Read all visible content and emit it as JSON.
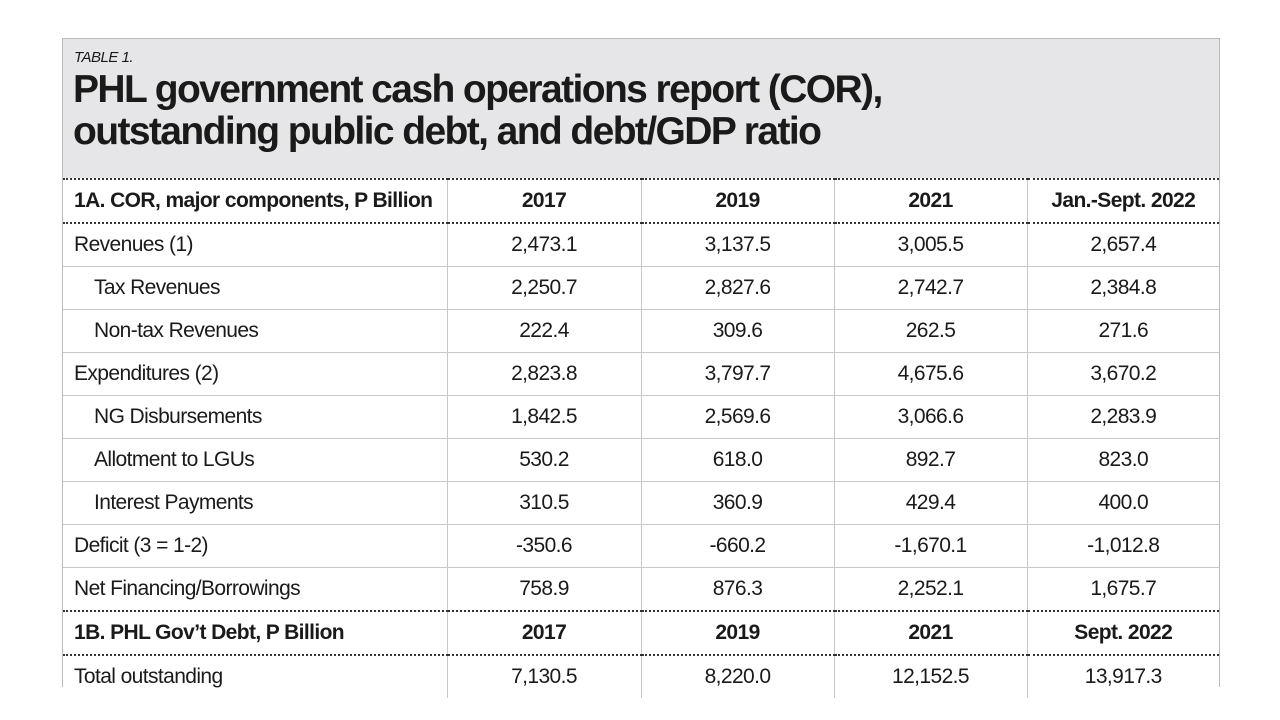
{
  "label": "TABLE 1.",
  "title_line1": "PHL government cash operations report (COR),",
  "title_line2": "outstanding public debt, and debt/GDP ratio",
  "section_a": {
    "header": [
      "1A. COR, major components, P Billion",
      "2017",
      "2019",
      "2021",
      "Jan.-Sept. 2022"
    ],
    "rows": [
      {
        "label": "Revenues (1)",
        "values": [
          "2,473.1",
          "3,137.5",
          "3,005.5",
          "2,657.4"
        ]
      },
      {
        "label": "Tax Revenues",
        "values": [
          "2,250.7",
          "2,827.6",
          "2,742.7",
          "2,384.8"
        ]
      },
      {
        "label": "Non-tax Revenues",
        "values": [
          "222.4",
          "309.6",
          "262.5",
          "271.6"
        ]
      },
      {
        "label": "Expenditures (2)",
        "values": [
          "2,823.8",
          "3,797.7",
          "4,675.6",
          "3,670.2"
        ]
      },
      {
        "label": "NG Disbursements",
        "values": [
          "1,842.5",
          "2,569.6",
          "3,066.6",
          "2,283.9"
        ]
      },
      {
        "label": "Allotment to LGUs",
        "values": [
          "530.2",
          "618.0",
          "892.7",
          "823.0"
        ]
      },
      {
        "label": "Interest Payments",
        "values": [
          "310.5",
          "360.9",
          "429.4",
          "400.0"
        ]
      },
      {
        "label": "Deficit (3 = 1-2)",
        "values": [
          "-350.6",
          "-660.2",
          "-1,670.1",
          "-1,012.8"
        ]
      },
      {
        "label": "Net Financing/Borrowings",
        "values": [
          "758.9",
          "876.3",
          "2,252.1",
          "1,675.7"
        ]
      }
    ]
  },
  "section_b": {
    "header": [
      "1B. PHL Gov’t Debt, P Billion",
      "2017",
      "2019",
      "2021",
      "Sept. 2022"
    ],
    "rows": [
      {
        "label": "Total outstanding",
        "values": [
          "7,130.5",
          "8,220.0",
          "12,152.5",
          "13,917.3"
        ]
      }
    ]
  }
}
